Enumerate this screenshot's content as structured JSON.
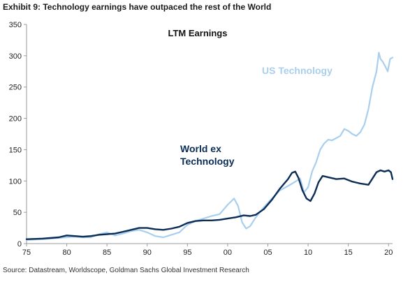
{
  "exhibit_title": "Exhibit 9: Technology earnings have outpaced the rest of the World",
  "source": "Source: Datastream, Worldscope, Goldman Sachs Global Investment Research",
  "colors": {
    "world_ex_tech": "#0b2d55",
    "us_tech": "#a9cfee",
    "axis": "#9a9a9a"
  },
  "chart_data": {
    "type": "line",
    "title": "LTM Earnings",
    "xlabel": "",
    "ylabel": "",
    "xlim": [
      1975,
      2020.5
    ],
    "ylim": [
      0,
      350
    ],
    "yticks": [
      "0",
      "50",
      "100",
      "150",
      "200",
      "250",
      "300",
      "350"
    ],
    "xticks": [
      "75",
      "80",
      "85",
      "90",
      "95",
      "00",
      "05",
      "10",
      "15",
      "20"
    ],
    "grid": false,
    "legend": "inline labels",
    "series": [
      {
        "name": "US Technology",
        "color": "#a9cfee",
        "x": [
          1975,
          1977,
          1979,
          1980,
          1981,
          1982,
          1983,
          1984,
          1985,
          1986,
          1987,
          1988,
          1989,
          1990,
          1991,
          1992,
          1993,
          1994,
          1995,
          1996,
          1997,
          1998,
          1999,
          2000,
          2000.8,
          2001.3,
          2001.8,
          2002.3,
          2002.8,
          2003.5,
          2004.5,
          2005.5,
          2006.5,
          2007.5,
          2008.3,
          2009,
          2009.5,
          2010,
          2010.5,
          2011,
          2011.5,
          2012,
          2012.5,
          2013,
          2014,
          2014.5,
          2015,
          2015.5,
          2016,
          2016.5,
          2017,
          2017.5,
          2018,
          2018.5,
          2018.8,
          2019,
          2019.3,
          2019.6,
          2019.9,
          2020.2,
          2020.5
        ],
        "y": [
          6,
          7,
          9,
          10,
          11,
          10,
          10,
          15,
          18,
          13,
          16,
          20,
          22,
          18,
          12,
          10,
          14,
          18,
          30,
          36,
          40,
          44,
          47,
          62,
          72,
          60,
          34,
          24,
          28,
          42,
          58,
          72,
          85,
          92,
          98,
          104,
          82,
          90,
          115,
          130,
          150,
          160,
          166,
          165,
          172,
          183,
          180,
          175,
          172,
          178,
          190,
          215,
          250,
          275,
          305,
          295,
          290,
          283,
          275,
          295,
          297
        ]
      },
      {
        "name": "World ex Technology",
        "color": "#0b2d55",
        "x": [
          1975,
          1977,
          1979,
          1980,
          1981,
          1982,
          1983,
          1984,
          1985,
          1986,
          1987,
          1988,
          1989,
          1990,
          1991,
          1992,
          1993,
          1994,
          1995,
          1996,
          1997,
          1998,
          1999,
          2000,
          2001,
          2002,
          2002.8,
          2003.5,
          2004.5,
          2005.5,
          2006.5,
          2007.5,
          2008,
          2008.4,
          2008.8,
          2009.3,
          2009.8,
          2010.3,
          2010.8,
          2011.3,
          2011.8,
          2012.5,
          2013.5,
          2014.5,
          2015.5,
          2016.5,
          2017.5,
          2018.5,
          2019,
          2019.5,
          2020,
          2020.3,
          2020.5
        ],
        "y": [
          7,
          8,
          10,
          13,
          12,
          11,
          12,
          14,
          15,
          16,
          19,
          22,
          25,
          25,
          23,
          22,
          24,
          27,
          33,
          36,
          37,
          37,
          38,
          40,
          42,
          45,
          44,
          46,
          55,
          70,
          88,
          103,
          113,
          115,
          105,
          85,
          72,
          68,
          80,
          98,
          108,
          106,
          103,
          104,
          99,
          96,
          94,
          114,
          117,
          115,
          117,
          114,
          103
        ]
      }
    ]
  },
  "annotations": {
    "us_tech": "US Technology",
    "world_line1": "World ex",
    "world_line2": "Technology"
  }
}
